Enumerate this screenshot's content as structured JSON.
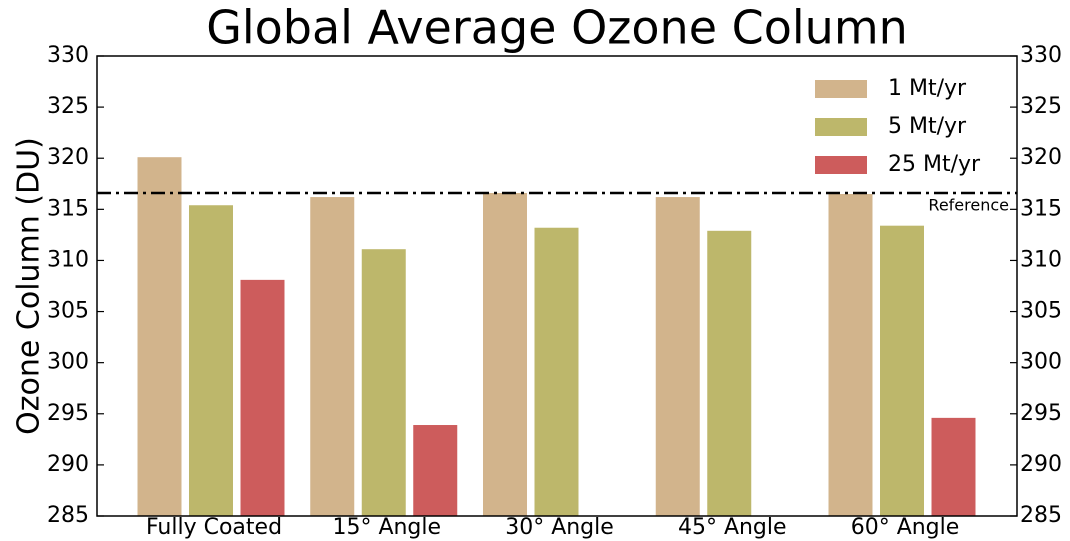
{
  "chart_data": {
    "type": "bar",
    "title": "Global Average Ozone Column",
    "y_label": "Ozone Column (DU)",
    "categories": [
      "Fully Coated",
      "15° Angle",
      "30° Angle",
      "45° Angle",
      "60° Angle"
    ],
    "series": [
      {
        "name": "1 Mt/yr",
        "color": "#d2b48c",
        "values": [
          320.1,
          316.2,
          316.6,
          316.2,
          316.5
        ]
      },
      {
        "name": "5 Mt/yr",
        "color": "#bdb76b",
        "values": [
          315.4,
          311.1,
          313.2,
          312.9,
          313.4
        ]
      },
      {
        "name": "25 Mt/yr",
        "color": "#cd5c5c",
        "values": [
          308.1,
          293.9,
          null,
          null,
          294.6
        ]
      }
    ],
    "reference": {
      "value": 316.6,
      "label": "Reference"
    },
    "ylim": [
      285,
      330
    ],
    "yticks": [
      285,
      290,
      295,
      300,
      305,
      310,
      315,
      320,
      325,
      330
    ],
    "legend": "upper right",
    "right_axis_labels": true
  }
}
